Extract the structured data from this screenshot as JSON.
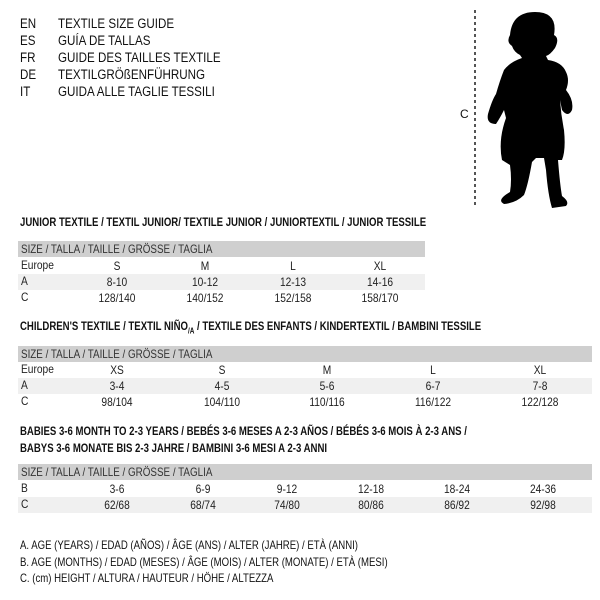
{
  "languages": [
    {
      "code": "EN",
      "title": "TEXTILE SIZE GUIDE"
    },
    {
      "code": "ES",
      "title": "GUÍA DE TALLAS"
    },
    {
      "code": "FR",
      "title": "GUIDE DES TAILLES TEXTILE"
    },
    {
      "code": "DE",
      "title": "TEXTILGRÖßENFÜHRUNG"
    },
    {
      "code": "IT",
      "title": "GUIDA ALLE TAGLIE TESSILI"
    }
  ],
  "figure": {
    "measure_label": "C"
  },
  "size_header": "SIZE / TALLA / TAILLE / GRÖSSE / TAGLIA",
  "junior": {
    "title": "JUNIOR TEXTILE / TEXTIL JUNIOR/ TEXTILE JUNIOR / JUNIORTEXTIL / JUNIOR TESSILE",
    "rows": [
      {
        "label": "Europe",
        "values": [
          "S",
          "M",
          "L",
          "XL"
        ]
      },
      {
        "label": "A",
        "values": [
          "8-10",
          "10-12",
          "12-13",
          "14-16"
        ]
      },
      {
        "label": "C",
        "values": [
          "128/140",
          "140/152",
          "152/158",
          "158/170"
        ]
      }
    ]
  },
  "children": {
    "title_a": "CHILDREN'S TEXTILE / TEXTIL NIÑO",
    "title_sub": "/A",
    "title_b": " / TEXTILE DES ENFANTS / KINDERTEXTIL / BAMBINI TESSILE",
    "rows": [
      {
        "label": "Europe",
        "values": [
          "XS",
          "S",
          "M",
          "L",
          "XL"
        ]
      },
      {
        "label": "A",
        "values": [
          "3-4",
          "4-5",
          "5-6",
          "6-7",
          "7-8"
        ]
      },
      {
        "label": "C",
        "values": [
          "98/104",
          "104/110",
          "110/116",
          "116/122",
          "122/128"
        ]
      }
    ]
  },
  "babies": {
    "title_line1": "BABIES 3-6 MONTH TO 2-3 YEARS / BEBÉS 3-6 MESES A 2-3 AÑOS / BÉBÉS 3-6 MOIS À 2-3 ANS /",
    "title_line2": "BABYS 3-6 MONATE BIS 2-3 JAHRE / BAMBINI 3-6 MESI A 2-3 ANNI",
    "rows": [
      {
        "label": "B",
        "values": [
          "3-6",
          "6-9",
          "9-12",
          "12-18",
          "18-24",
          "24-36"
        ]
      },
      {
        "label": "C",
        "values": [
          "62/68",
          "68/74",
          "74/80",
          "80/86",
          "86/92",
          "92/98"
        ]
      }
    ]
  },
  "legend": [
    "A. AGE (YEARS) / EDAD (AÑOS) / ÂGE (ANS) / ALTER (JAHRE) / ETÀ (ANNI)",
    "B. AGE (MONTHS) / EDAD (MESES) / ÂGE (MOIS) / ALTER (MONATE) / ETÀ (MESI)",
    "C. (cm) HEIGHT / ALTURA / HAUTEUR / HÖHE / ALTEZZA"
  ]
}
